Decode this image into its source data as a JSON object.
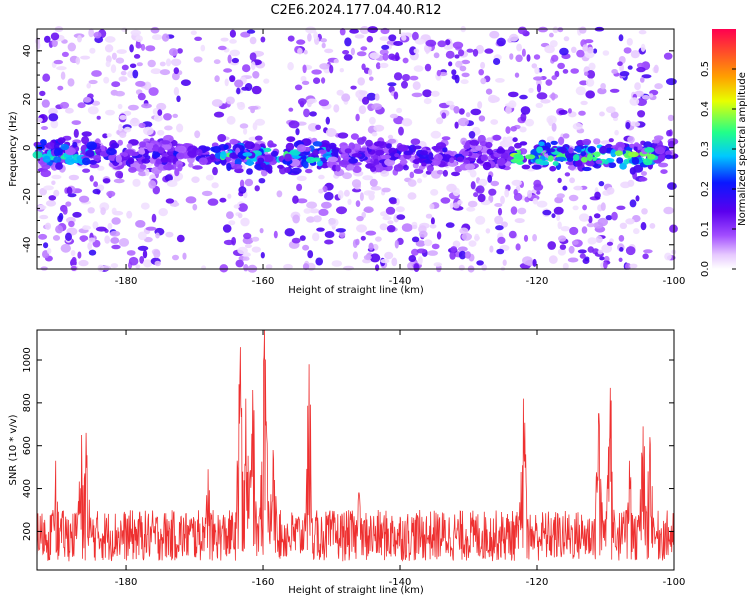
{
  "title": "C2E6.2024.177.04.40.R12",
  "colors": {
    "snr_line": "#ee3030",
    "colormap": [
      "#ffffff",
      "#e6c8ff",
      "#a24dff",
      "#5a00ee",
      "#0a18ff",
      "#00c8ff",
      "#22ff88",
      "#e8ff00",
      "#ffa000",
      "#ff0050"
    ]
  },
  "chart_data": [
    {
      "type": "heatmap",
      "name": "spectrogram",
      "xlabel": "Height of straight line (km)",
      "ylabel": "Frequency (Hz)",
      "xlim": [
        -193,
        -100
      ],
      "ylim": [
        -50,
        49
      ],
      "x_ticks": [
        -180,
        -160,
        -140,
        -120,
        -100
      ],
      "y_ticks": [
        -40,
        -20,
        0,
        20,
        40
      ],
      "y_tick_labels": [
        "-40",
        "-20",
        "0",
        "20",
        "40"
      ],
      "colorbar": {
        "label": "Normalized spectral amplitude",
        "range": [
          0,
          0.6
        ],
        "ticks": [
          "0.0",
          "0.1",
          "0.2",
          "0.3",
          "0.4",
          "0.5"
        ]
      },
      "band_center_hz": -3,
      "band_halfwidth_hz": 9,
      "bright_segments": [
        {
          "x_range": [
            -193,
            -185
          ],
          "level": 0.3
        },
        {
          "x_range": [
            -167,
            -150
          ],
          "level": 0.32
        },
        {
          "x_range": [
            -124,
            -103
          ],
          "level": 0.38
        }
      ],
      "empty_columns": [
        {
          "x_range": [
            -172,
            -166
          ]
        },
        {
          "x_range": [
            -160,
            -156
          ]
        },
        {
          "x_range": [
            -104,
            -101
          ]
        }
      ]
    },
    {
      "type": "line",
      "name": "snr",
      "xlabel": "Height of straight line (km)",
      "ylabel": "SNR (10 * v/v)",
      "xlim": [
        -193,
        -100
      ],
      "ylim": [
        20,
        1140
      ],
      "x_ticks": [
        -180,
        -160,
        -140,
        -120,
        -100
      ],
      "y_ticks": [
        200,
        400,
        600,
        800,
        1000
      ],
      "baseline_range": [
        60,
        300
      ],
      "peaks": [
        {
          "x": -190.3,
          "y": 530
        },
        {
          "x": -185.8,
          "y": 660
        },
        {
          "x": -186.5,
          "y": 650
        },
        {
          "x": -168.0,
          "y": 490
        },
        {
          "x": -163.3,
          "y": 1060
        },
        {
          "x": -162.5,
          "y": 820
        },
        {
          "x": -161.5,
          "y": 860
        },
        {
          "x": -159.8,
          "y": 1140
        },
        {
          "x": -158.5,
          "y": 580
        },
        {
          "x": -153.3,
          "y": 980
        },
        {
          "x": -146.0,
          "y": 380
        },
        {
          "x": -122.0,
          "y": 820
        },
        {
          "x": -111.0,
          "y": 750
        },
        {
          "x": -109.3,
          "y": 870
        },
        {
          "x": -106.5,
          "y": 530
        },
        {
          "x": -104.5,
          "y": 690
        },
        {
          "x": -103.5,
          "y": 640
        }
      ]
    }
  ]
}
